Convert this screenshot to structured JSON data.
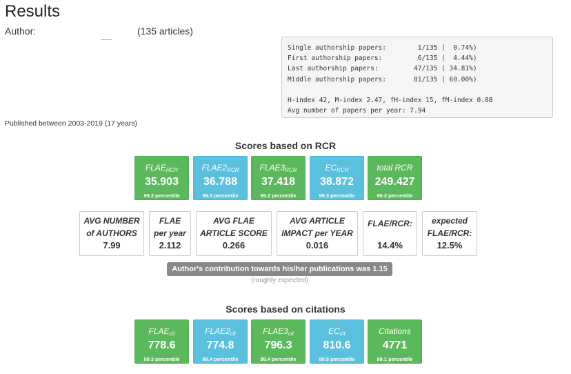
{
  "page": {
    "title": "Results"
  },
  "author": {
    "label": "Author:",
    "articles": "(135 articles)"
  },
  "stats_box": {
    "lines": [
      "Single authorship papers:        1/135 (  0.74%)",
      "First authorship papers:         6/135 (  4.44%)",
      "Last authorship papers:         47/135 ( 34.81%)",
      "Middle authorship papers:       81/135 ( 60.00%)",
      "",
      "H-index 42, M-index 2.47, fH-index 15, fM-index 0.88",
      "Avg number of papers per year: 7.94"
    ]
  },
  "published": "Published between 2003-2019 (17 years)",
  "rcr": {
    "title": "Scores based on RCR",
    "tiles": [
      {
        "label": "FLAE",
        "sub": "RCR",
        "value": "35.903",
        "percentile": "99.2 percentile",
        "color": "#5cb85c"
      },
      {
        "label": "FLAE2",
        "sub": "RCR",
        "value": "36.788",
        "percentile": "99.3 percentile",
        "color": "#5bc0de"
      },
      {
        "label": "FLAE3",
        "sub": "RCR",
        "value": "37.418",
        "percentile": "99.2 percentile",
        "color": "#5cb85c"
      },
      {
        "label": "EC",
        "sub": "RCR",
        "value": "38.872",
        "percentile": "99.3 percentile",
        "color": "#5bc0de"
      },
      {
        "label": "total RCR",
        "sub": "",
        "value": "249.427",
        "percentile": "99.2 percentile",
        "color": "#5cb85c"
      }
    ],
    "boxes": [
      {
        "title1": "AVG NUMBER",
        "title2": "of AUTHORS",
        "value": "7.99"
      },
      {
        "title1": "FLAE",
        "title2": "per year",
        "value": "2.112"
      },
      {
        "title1": "AVG FLAE",
        "title2": "ARTICLE SCORE",
        "value": "0.266"
      },
      {
        "title1": "AVG ARTICLE",
        "title2": "IMPACT per YEAR",
        "value": "0.016"
      },
      {
        "title1": "FLAE/RCR:",
        "title2": "",
        "value": "14.4%"
      },
      {
        "title1": "expected",
        "title2": "FLAE/RCR:",
        "value": "12.5%"
      }
    ],
    "contribution": "Author's contribution towards his/her publications was 1.15",
    "contribution_note": "(roughly expected)"
  },
  "citations": {
    "title": "Scores based on citations",
    "tiles": [
      {
        "label": "FLAE",
        "sub": "cit",
        "value": "778.6",
        "percentile": "99.3 percentile",
        "color": "#5cb85c"
      },
      {
        "label": "FLAE2",
        "sub": "cit",
        "value": "774.8",
        "percentile": "99.4 percentile",
        "color": "#5bc0de"
      },
      {
        "label": "FLAE3",
        "sub": "cit",
        "value": "796.3",
        "percentile": "99.4 percentile",
        "color": "#5cb85c"
      },
      {
        "label": "EC",
        "sub": "cit",
        "value": "810.6",
        "percentile": "99.5 percentile",
        "color": "#5bc0de"
      },
      {
        "label": "Citations",
        "sub": "",
        "value": "4771",
        "percentile": "99.1 percentile",
        "color": "#5cb85c"
      }
    ]
  }
}
